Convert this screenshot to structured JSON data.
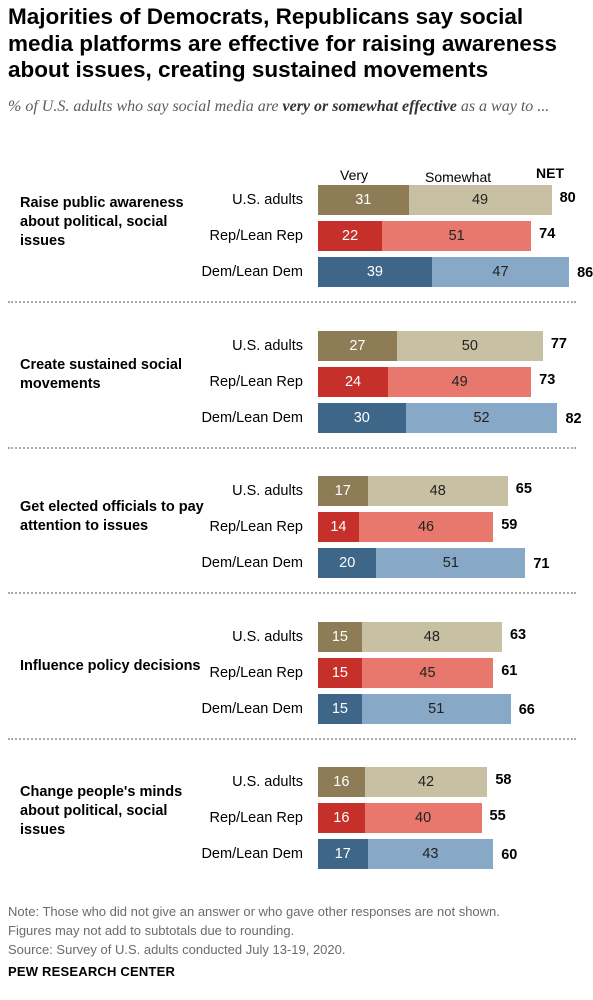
{
  "title": "Majorities of Democrats, Republicans say social media platforms are effective for raising awareness about issues, creating sustained movements",
  "subtitle": {
    "prefix": "% of U.S. adults who say social media are ",
    "emphasis": "very or somewhat effective",
    "suffix": " as a way to ..."
  },
  "headers": {
    "very": "Very",
    "somewhat": "Somewhat",
    "net": "NET"
  },
  "notes": [
    "Note: Those who did not give an answer or who gave other responses are not shown.",
    "Figures may not add to subtotals due to rounding.",
    "Source: Survey of U.S. adults conducted July 13-19, 2020."
  ],
  "source_org": "PEW RESEARCH CENTER",
  "colors": {
    "U.S. adults": {
      "very": "#8d7c56",
      "somewhat": "#c8c0a2"
    },
    "Rep/Lean Rep": {
      "very": "#c5302b",
      "somewhat": "#e8786d"
    },
    "Dem/Lean Dem": {
      "very": "#3d6688",
      "somewhat": "#87a9c7"
    }
  },
  "chart_data": {
    "type": "bar",
    "orientation": "horizontal",
    "stacked": true,
    "series_names": [
      "Very",
      "Somewhat"
    ],
    "groups": [
      {
        "label": "Raise public awareness about political, social issues",
        "rows": [
          {
            "label": "U.S. adults",
            "very": 31,
            "somewhat": 49,
            "net": 80
          },
          {
            "label": "Rep/Lean Rep",
            "very": 22,
            "somewhat": 51,
            "net": 74
          },
          {
            "label": "Dem/Lean Dem",
            "very": 39,
            "somewhat": 47,
            "net": 86
          }
        ]
      },
      {
        "label": "Create sustained social movements",
        "rows": [
          {
            "label": "U.S. adults",
            "very": 27,
            "somewhat": 50,
            "net": 77
          },
          {
            "label": "Rep/Lean Rep",
            "very": 24,
            "somewhat": 49,
            "net": 73
          },
          {
            "label": "Dem/Lean Dem",
            "very": 30,
            "somewhat": 52,
            "net": 82
          }
        ]
      },
      {
        "label": "Get elected officials to pay attention to issues",
        "rows": [
          {
            "label": "U.S. adults",
            "very": 17,
            "somewhat": 48,
            "net": 65
          },
          {
            "label": "Rep/Lean Rep",
            "very": 14,
            "somewhat": 46,
            "net": 59
          },
          {
            "label": "Dem/Lean Dem",
            "very": 20,
            "somewhat": 51,
            "net": 71
          }
        ]
      },
      {
        "label": "Influence policy decisions",
        "rows": [
          {
            "label": "U.S. adults",
            "very": 15,
            "somewhat": 48,
            "net": 63
          },
          {
            "label": "Rep/Lean Rep",
            "very": 15,
            "somewhat": 45,
            "net": 61
          },
          {
            "label": "Dem/Lean Dem",
            "very": 15,
            "somewhat": 51,
            "net": 66
          }
        ]
      },
      {
        "label": "Change people's minds about political, social issues",
        "rows": [
          {
            "label": "U.S. adults",
            "very": 16,
            "somewhat": 42,
            "net": 58
          },
          {
            "label": "Rep/Lean Rep",
            "very": 16,
            "somewhat": 40,
            "net": 55
          },
          {
            "label": "Dem/Lean Dem",
            "very": 17,
            "somewhat": 43,
            "net": 60
          }
        ]
      }
    ]
  }
}
